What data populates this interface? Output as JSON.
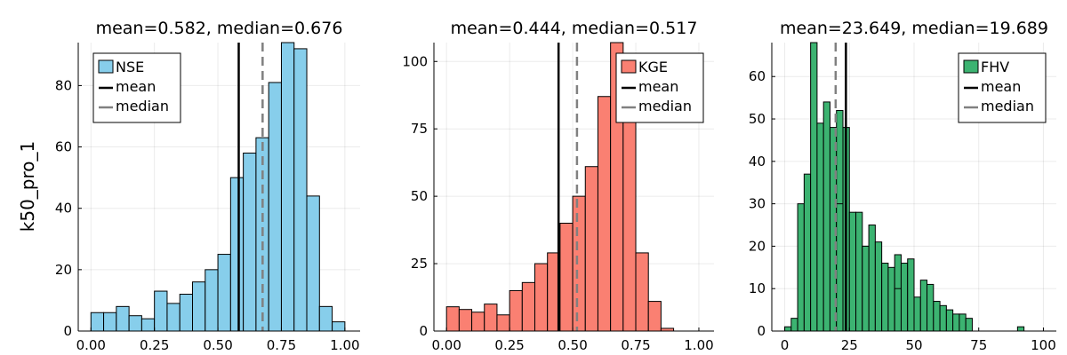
{
  "figure": {
    "ylabel": "k50_pro_1"
  },
  "chart_data": [
    {
      "type": "bar",
      "title": "mean=0.582, median=0.676",
      "ylabel": "k50_pro_1",
      "color": "#87CEEB",
      "bin_width": 0.05,
      "bin_start": 0.0,
      "values": [
        6,
        6,
        8,
        5,
        4,
        13,
        9,
        12,
        16,
        20,
        25,
        50,
        58,
        63,
        81,
        94,
        92,
        44,
        8,
        3
      ],
      "mean": 0.582,
      "median": 0.676,
      "xlim": [
        -0.05,
        1.06
      ],
      "ylim": [
        0,
        94
      ],
      "xticks": [
        0.0,
        0.25,
        0.5,
        0.75,
        1.0
      ],
      "xtick_labels": [
        "0.00",
        "0.25",
        "0.50",
        "0.75",
        "1.00"
      ],
      "yticks": [
        0,
        20,
        40,
        60,
        80
      ],
      "ytick_labels": [
        "0",
        "20",
        "40",
        "60",
        "80"
      ],
      "legend": {
        "placement": "top-left",
        "entries": [
          "NSE",
          "mean",
          "median"
        ]
      },
      "grid": true
    },
    {
      "type": "bar",
      "title": "mean=0.444, median=0.517",
      "color": "#FA8072",
      "bin_width": 0.05,
      "bin_start": 0.0,
      "values": [
        9,
        8,
        7,
        10,
        6,
        15,
        18,
        25,
        29,
        40,
        50,
        61,
        87,
        107,
        78,
        29,
        11,
        1,
        0,
        0
      ],
      "mean": 0.444,
      "median": 0.517,
      "xlim": [
        -0.05,
        1.06
      ],
      "ylim": [
        0,
        107
      ],
      "xticks": [
        0.0,
        0.25,
        0.5,
        0.75,
        1.0
      ],
      "xtick_labels": [
        "0.00",
        "0.25",
        "0.50",
        "0.75",
        "1.00"
      ],
      "yticks": [
        0,
        25,
        50,
        75,
        100
      ],
      "ytick_labels": [
        "0",
        "25",
        "50",
        "75",
        "100"
      ],
      "legend": {
        "placement": "top-right",
        "entries": [
          "KGE",
          "mean",
          "median"
        ]
      },
      "grid": true
    },
    {
      "type": "bar",
      "title": "mean=23.649, median=19.689",
      "color": "#3CB371",
      "bin_width": 2.5,
      "bin_start": 0,
      "values": [
        1,
        3,
        30,
        37,
        68,
        49,
        54,
        48,
        52,
        48,
        28,
        28,
        20,
        25,
        21,
        16,
        15,
        18,
        16,
        17,
        8,
        12,
        11,
        7,
        6,
        5,
        4,
        4,
        3,
        0,
        0,
        0,
        0,
        0,
        0,
        0,
        1,
        0,
        0,
        0,
        0,
        0
      ],
      "extra_bars": [
        {
          "x0": 20,
          "x1": 22.5,
          "value": 30
        },
        {
          "x0": 30,
          "x1": 32.5,
          "value": 20
        },
        {
          "x0": 42.5,
          "x1": 45,
          "value": 10
        }
      ],
      "mean": 23.649,
      "median": 19.689,
      "xlim": [
        -5,
        105
      ],
      "ylim": [
        0,
        68
      ],
      "xticks": [
        0,
        25,
        50,
        75,
        100
      ],
      "xtick_labels": [
        "0",
        "25",
        "50",
        "75",
        "100"
      ],
      "yticks": [
        0,
        10,
        20,
        30,
        40,
        50,
        60
      ],
      "ytick_labels": [
        "0",
        "10",
        "20",
        "30",
        "40",
        "50",
        "60"
      ],
      "legend": {
        "placement": "top-right",
        "entries": [
          "FHV",
          "mean",
          "median"
        ]
      },
      "grid": true
    }
  ]
}
